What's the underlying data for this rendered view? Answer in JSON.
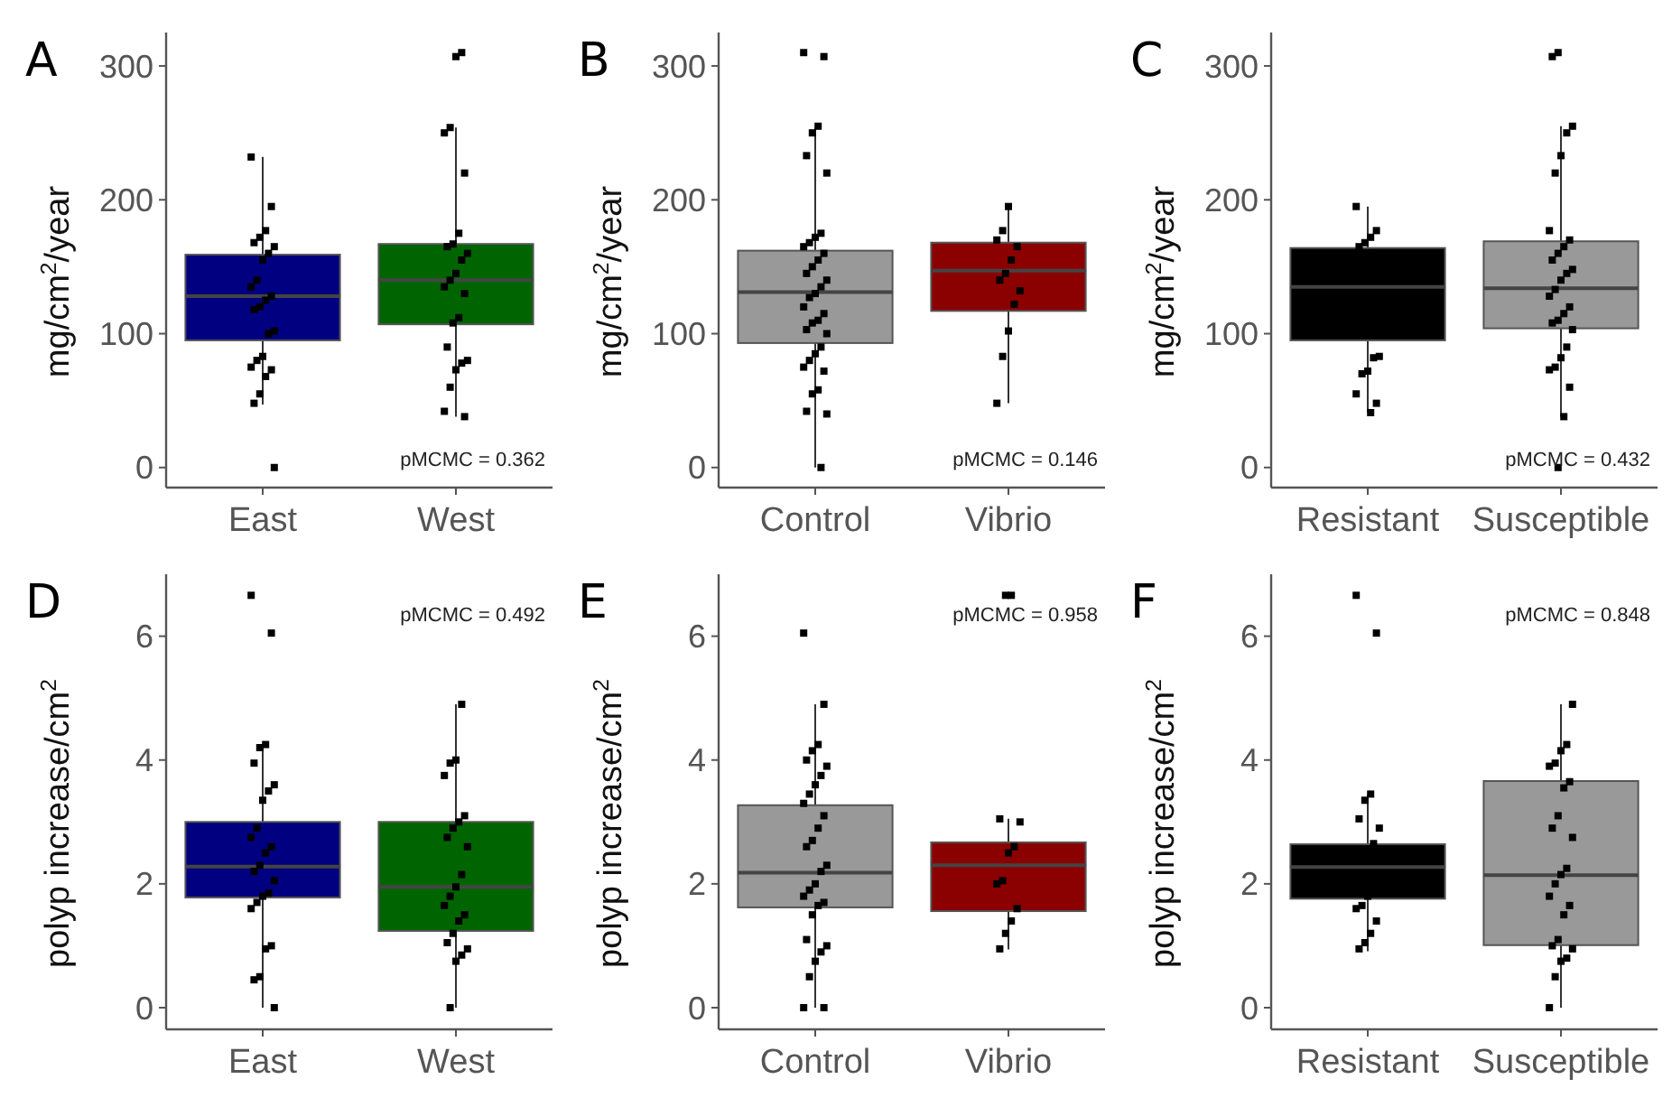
{
  "chart_data": [
    {
      "type": "box",
      "title": "A",
      "ylabel": "mg/cm$^{2}$/year",
      "categories": [
        "East",
        "West"
      ],
      "colors": [
        "#000080",
        "#006400"
      ],
      "ylim": [
        -15,
        325
      ],
      "yticks": [
        0,
        100,
        200,
        300
      ],
      "grid": false,
      "marker": "square",
      "annotations": [
        "pMCMC =  0.362"
      ],
      "boxes": [
        {
          "low": 47,
          "q1": 95,
          "median": 128,
          "q3": 159,
          "high": 232
        },
        {
          "low": 38,
          "q1": 107,
          "median": 140,
          "q3": 167,
          "high": 254
        }
      ],
      "series": [
        {
          "type": "scatter",
          "color": "#000000",
          "x": [
            "East",
            "East",
            "East",
            "East",
            "East",
            "East",
            "East",
            "East",
            "East",
            "East",
            "East",
            "East",
            "East",
            "East",
            "East",
            "East",
            "East",
            "East",
            "East",
            "East",
            "East",
            "East",
            "East",
            "East",
            "West",
            "West",
            "West",
            "West",
            "West",
            "West",
            "West",
            "West",
            "West",
            "West",
            "West",
            "West",
            "West",
            "West",
            "West",
            "West",
            "West",
            "West",
            "West",
            "West",
            "West",
            "West",
            "West"
          ],
          "values": [
            232,
            195,
            177,
            172,
            168,
            165,
            160,
            155,
            140,
            135,
            128,
            125,
            120,
            118,
            102,
            100,
            83,
            80,
            75,
            73,
            68,
            55,
            48,
            0,
            310,
            307,
            254,
            250,
            220,
            175,
            167,
            165,
            160,
            155,
            145,
            140,
            135,
            130,
            112,
            108,
            90,
            80,
            78,
            73,
            60,
            42,
            38
          ]
        }
      ]
    },
    {
      "type": "box",
      "title": "B",
      "ylabel": "mg/cm$^{2}$/year",
      "categories": [
        "Control",
        "Vibrio"
      ],
      "colors": [
        "#999999",
        "#8b0000"
      ],
      "ylim": [
        -15,
        325
      ],
      "yticks": [
        0,
        100,
        200,
        300
      ],
      "grid": false,
      "marker": "square",
      "annotations": [
        "pMCMC =  0.146"
      ],
      "boxes": [
        {
          "low": 0,
          "q1": 93,
          "median": 131,
          "q3": 162,
          "high": 254
        },
        {
          "low": 48,
          "q1": 117,
          "median": 147,
          "q3": 168,
          "high": 195
        }
      ],
      "series": [
        {
          "type": "scatter",
          "color": "#000000",
          "x": [
            "Control",
            "Control",
            "Control",
            "Control",
            "Control",
            "Control",
            "Control",
            "Control",
            "Control",
            "Control",
            "Control",
            "Control",
            "Control",
            "Control",
            "Control",
            "Control",
            "Control",
            "Control",
            "Control",
            "Control",
            "Control",
            "Control",
            "Control",
            "Control",
            "Control",
            "Control",
            "Control",
            "Control",
            "Control",
            "Control",
            "Control",
            "Control",
            "Control",
            "Control",
            "Vibrio",
            "Vibrio",
            "Vibrio",
            "Vibrio",
            "Vibrio",
            "Vibrio",
            "Vibrio",
            "Vibrio",
            "Vibrio",
            "Vibrio",
            "Vibrio",
            "Vibrio"
          ],
          "values": [
            310,
            307,
            255,
            250,
            233,
            220,
            175,
            172,
            168,
            165,
            160,
            155,
            150,
            145,
            140,
            135,
            130,
            127,
            120,
            115,
            110,
            108,
            103,
            100,
            90,
            85,
            80,
            75,
            72,
            58,
            55,
            42,
            40,
            0,
            195,
            177,
            170,
            165,
            155,
            145,
            140,
            132,
            122,
            102,
            83,
            48
          ]
        }
      ]
    },
    {
      "type": "box",
      "title": "C",
      "ylabel": "mg/cm$^{2}$/year",
      "categories": [
        "Resistant",
        "Susceptible"
      ],
      "colors": [
        "#000000",
        "#999999"
      ],
      "ylim": [
        -15,
        325
      ],
      "yticks": [
        0,
        100,
        200,
        300
      ],
      "grid": false,
      "marker": "square",
      "annotations": [
        "pMCMC =  0.432"
      ],
      "boxes": [
        {
          "low": 41,
          "q1": 95,
          "median": 135,
          "q3": 164,
          "high": 195
        },
        {
          "low": 38,
          "q1": 104,
          "median": 134,
          "q3": 169,
          "high": 255
        }
      ],
      "series": [
        {
          "type": "scatter",
          "color": "#000000",
          "x": [
            "Resistant",
            "Resistant",
            "Resistant",
            "Resistant",
            "Resistant",
            "Resistant",
            "Resistant",
            "Resistant",
            "Resistant",
            "Resistant",
            "Resistant",
            "Resistant",
            "Susceptible",
            "Susceptible",
            "Susceptible",
            "Susceptible",
            "Susceptible",
            "Susceptible",
            "Susceptible",
            "Susceptible",
            "Susceptible",
            "Susceptible",
            "Susceptible",
            "Susceptible",
            "Susceptible",
            "Susceptible",
            "Susceptible",
            "Susceptible",
            "Susceptible",
            "Susceptible",
            "Susceptible",
            "Susceptible",
            "Susceptible",
            "Susceptible",
            "Susceptible",
            "Susceptible",
            "Susceptible",
            "Susceptible",
            "Susceptible",
            "Susceptible"
          ],
          "values": [
            195,
            177,
            172,
            168,
            165,
            83,
            82,
            72,
            70,
            55,
            48,
            41,
            310,
            307,
            255,
            250,
            233,
            220,
            177,
            170,
            165,
            160,
            155,
            148,
            145,
            140,
            133,
            128,
            120,
            115,
            110,
            108,
            103,
            90,
            82,
            75,
            73,
            60,
            38,
            0
          ]
        }
      ]
    },
    {
      "type": "box",
      "title": "D",
      "ylabel": "polyp increase/cm$^{2}$",
      "categories": [
        "East",
        "West"
      ],
      "colors": [
        "#000080",
        "#006400"
      ],
      "ylim": [
        -0.35,
        7
      ],
      "yticks": [
        0,
        2,
        4,
        6
      ],
      "grid": false,
      "marker": "square",
      "annotations": [
        "pMCMC =  0.492"
      ],
      "boxes": [
        {
          "low": 0,
          "q1": 1.78,
          "median": 2.28,
          "q3": 3.0,
          "high": 4.25
        },
        {
          "low": 0,
          "q1": 1.24,
          "median": 1.95,
          "q3": 3.0,
          "high": 4.9
        }
      ],
      "series": [
        {
          "type": "scatter",
          "color": "#000000",
          "x": [
            "East",
            "East",
            "East",
            "East",
            "East",
            "East",
            "East",
            "East",
            "East",
            "East",
            "East",
            "East",
            "East",
            "East",
            "East",
            "East",
            "East",
            "East",
            "East",
            "East",
            "East",
            "East",
            "East",
            "East",
            "West",
            "West",
            "West",
            "West",
            "West",
            "West",
            "West",
            "West",
            "West",
            "West",
            "West",
            "West",
            "West",
            "West",
            "West",
            "West",
            "West",
            "West",
            "West",
            "West",
            "West"
          ],
          "values": [
            6.66,
            6.05,
            4.25,
            4.2,
            3.95,
            3.6,
            3.5,
            3.35,
            2.9,
            2.75,
            2.6,
            2.5,
            2.3,
            2.2,
            2.05,
            1.85,
            1.8,
            1.7,
            1.6,
            1.0,
            0.95,
            0.5,
            0.45,
            0,
            4.9,
            4.0,
            3.95,
            3.75,
            3.1,
            3.0,
            2.9,
            2.75,
            2.6,
            2.15,
            1.95,
            1.8,
            1.65,
            1.5,
            1.4,
            1.2,
            1.05,
            0.95,
            0.85,
            0.75,
            0
          ]
        }
      ]
    },
    {
      "type": "box",
      "title": "E",
      "ylabel": "polyp increase/cm$^{2}$",
      "categories": [
        "Control",
        "Vibrio"
      ],
      "colors": [
        "#999999",
        "#8b0000"
      ],
      "ylim": [
        -0.35,
        7
      ],
      "yticks": [
        0,
        2,
        4,
        6
      ],
      "grid": false,
      "marker": "square",
      "annotations": [
        "pMCMC =  0.958"
      ],
      "boxes": [
        {
          "low": 0,
          "q1": 1.62,
          "median": 2.18,
          "q3": 3.27,
          "high": 4.9
        },
        {
          "low": 0.94,
          "q1": 1.56,
          "median": 2.3,
          "q3": 2.67,
          "high": 3.05
        }
      ],
      "series": [
        {
          "type": "scatter",
          "color": "#000000",
          "x": [
            "Control",
            "Control",
            "Control",
            "Control",
            "Control",
            "Control",
            "Control",
            "Control",
            "Control",
            "Control",
            "Control",
            "Control",
            "Control",
            "Control",
            "Control",
            "Control",
            "Control",
            "Control",
            "Control",
            "Control",
            "Control",
            "Control",
            "Control",
            "Control",
            "Control",
            "Control",
            "Control",
            "Control",
            "Control",
            "Vibrio",
            "Vibrio",
            "Vibrio",
            "Vibrio",
            "Vibrio",
            "Vibrio",
            "Vibrio",
            "Vibrio",
            "Vibrio",
            "Vibrio",
            "Vibrio",
            "Vibrio"
          ],
          "values": [
            6.05,
            4.9,
            4.25,
            4.15,
            4.0,
            3.9,
            3.75,
            3.6,
            3.45,
            3.3,
            3.1,
            2.9,
            2.7,
            2.6,
            2.3,
            2.2,
            2.0,
            1.9,
            1.8,
            1.7,
            1.65,
            1.5,
            1.1,
            1.0,
            0.9,
            0.75,
            0.5,
            0,
            0,
            6.66,
            6.66,
            3.05,
            3.0,
            2.6,
            2.5,
            2.05,
            2.0,
            1.6,
            1.4,
            1.2,
            0.95
          ]
        }
      ]
    },
    {
      "type": "box",
      "title": "F",
      "ylabel": "polyp increase/cm$^{2}$",
      "categories": [
        "Resistant",
        "Susceptible"
      ],
      "colors": [
        "#000000",
        "#999999"
      ],
      "ylim": [
        -0.35,
        7
      ],
      "yticks": [
        0,
        2,
        4,
        6
      ],
      "grid": false,
      "marker": "square",
      "annotations": [
        "pMCMC =  0.848"
      ],
      "boxes": [
        {
          "low": 0.91,
          "q1": 1.76,
          "median": 2.27,
          "q3": 2.64,
          "high": 3.44
        },
        {
          "low": 0,
          "q1": 1.01,
          "median": 2.14,
          "q3": 3.66,
          "high": 4.9
        }
      ],
      "series": [
        {
          "type": "scatter",
          "color": "#000000",
          "x": [
            "Resistant",
            "Resistant",
            "Resistant",
            "Resistant",
            "Resistant",
            "Resistant",
            "Resistant",
            "Resistant",
            "Resistant",
            "Resistant",
            "Resistant",
            "Resistant",
            "Resistant",
            "Resistant",
            "Susceptible",
            "Susceptible",
            "Susceptible",
            "Susceptible",
            "Susceptible",
            "Susceptible",
            "Susceptible",
            "Susceptible",
            "Susceptible",
            "Susceptible",
            "Susceptible",
            "Susceptible",
            "Susceptible",
            "Susceptible",
            "Susceptible",
            "Susceptible",
            "Susceptible",
            "Susceptible",
            "Susceptible",
            "Susceptible",
            "Susceptible",
            "Susceptible",
            "Susceptible"
          ],
          "values": [
            6.66,
            6.05,
            3.45,
            3.35,
            3.05,
            2.9,
            2.65,
            1.8,
            1.65,
            1.6,
            1.4,
            1.2,
            1.05,
            0.95,
            4.9,
            4.25,
            4.15,
            3.95,
            3.9,
            3.65,
            3.55,
            3.1,
            2.9,
            2.75,
            2.25,
            2.15,
            2.0,
            1.8,
            1.65,
            1.5,
            1.1,
            1.0,
            0.95,
            0.8,
            0.75,
            0.5,
            0
          ]
        }
      ]
    }
  ]
}
